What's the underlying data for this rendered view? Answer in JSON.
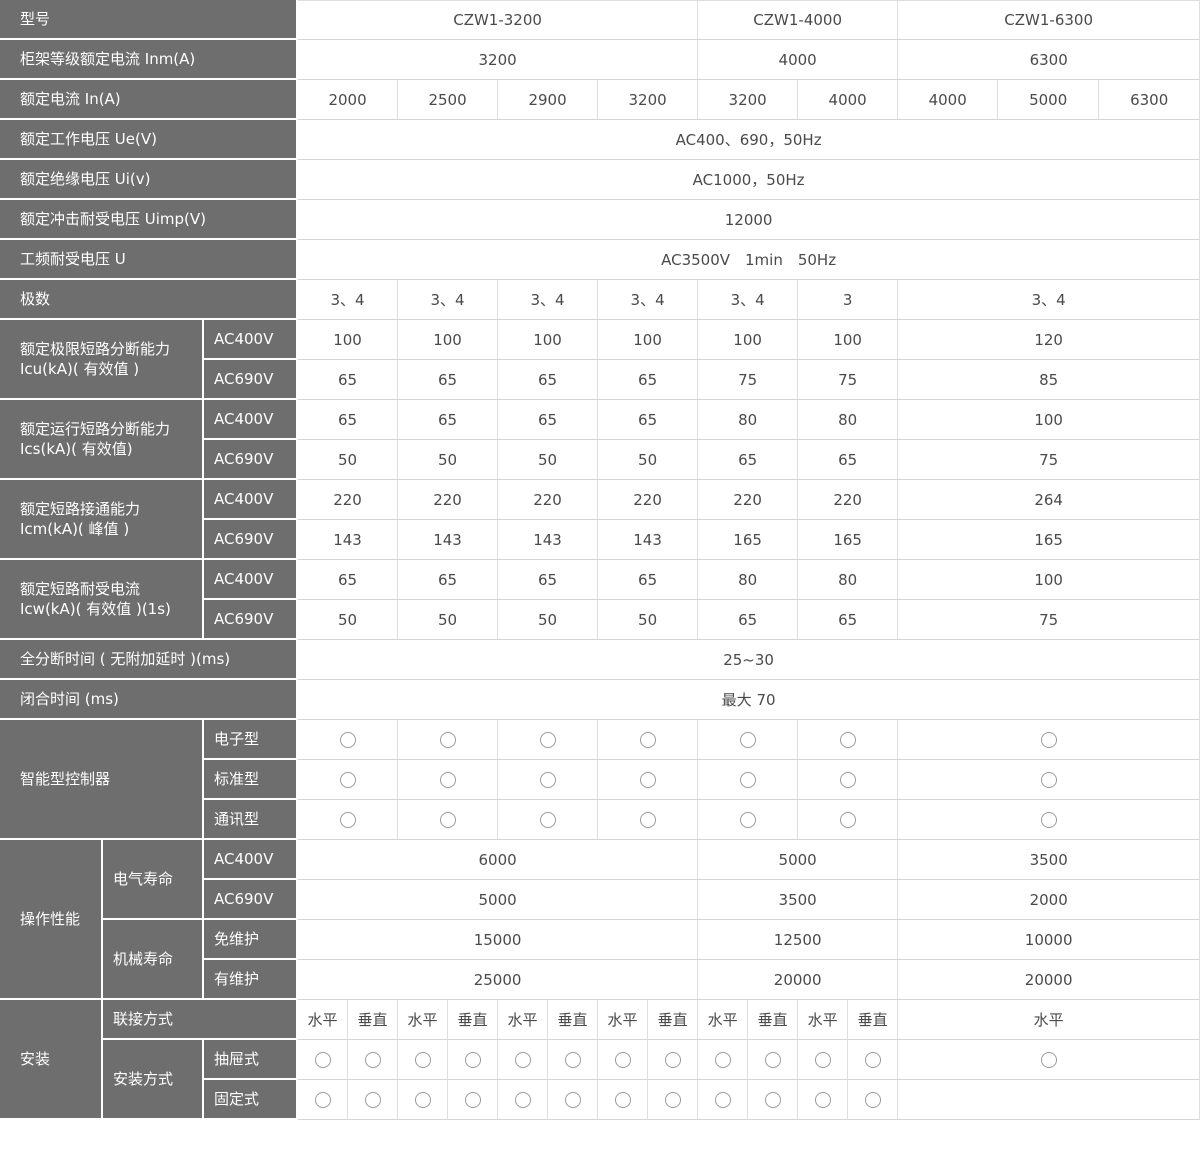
{
  "meta": {
    "document_title": "CZW1 系列万能式断路器主要技术参数表",
    "models": [
      "CZW1-3200",
      "CZW1-4000",
      "CZW1-6300"
    ]
  },
  "colors": {
    "header_bg": "#6e6e6e",
    "header_text": "#ffffff",
    "data_text": "#4a4a4a",
    "grid_line": "#d6d6d6",
    "header_gap_line": "#ffffff",
    "circle_stroke": "#9a9a9a"
  },
  "symbols": {
    "circle": "available-option-circle"
  },
  "table": {
    "rows": [
      {
        "cells": [
          {
            "k": "label",
            "t": "型号",
            "cs": 3
          },
          {
            "k": "data",
            "t": "CZW1-3200",
            "cs": 8
          },
          {
            "k": "data",
            "t": "CZW1-4000",
            "cs": 4
          },
          {
            "k": "data",
            "t": "CZW1-6300",
            "cs": 3
          }
        ]
      },
      {
        "cells": [
          {
            "k": "label",
            "t": "柜架等级额定电流 Inm(A)",
            "cs": 3
          },
          {
            "k": "data",
            "t": "3200",
            "cs": 8
          },
          {
            "k": "data",
            "t": "4000",
            "cs": 4
          },
          {
            "k": "data",
            "t": "6300",
            "cs": 3
          }
        ]
      },
      {
        "cells": [
          {
            "k": "label",
            "t": "额定电流 In(A)",
            "cs": 3
          },
          {
            "k": "data",
            "t": "2000",
            "cs": 2
          },
          {
            "k": "data",
            "t": "2500",
            "cs": 2
          },
          {
            "k": "data",
            "t": "2900",
            "cs": 2
          },
          {
            "k": "data",
            "t": "3200",
            "cs": 2
          },
          {
            "k": "data",
            "t": "3200",
            "cs": 2
          },
          {
            "k": "data",
            "t": "4000",
            "cs": 2
          },
          {
            "k": "data",
            "t": "4000"
          },
          {
            "k": "data",
            "t": "5000"
          },
          {
            "k": "data",
            "t": "6300"
          }
        ]
      },
      {
        "cells": [
          {
            "k": "label",
            "t": "额定工作电压 Ue(V)",
            "cs": 3
          },
          {
            "k": "data",
            "t": "AC400、690，50Hz",
            "cs": 15
          }
        ]
      },
      {
        "cells": [
          {
            "k": "label",
            "t": "额定绝缘电压 Ui(v)",
            "cs": 3
          },
          {
            "k": "data",
            "t": "AC1000，50Hz",
            "cs": 15
          }
        ]
      },
      {
        "cells": [
          {
            "k": "label",
            "t": "额定冲击耐受电压 Uimp(V)",
            "cs": 3
          },
          {
            "k": "data",
            "t": "12000",
            "cs": 15
          }
        ]
      },
      {
        "cells": [
          {
            "k": "label",
            "t": "工频耐受电压 U",
            "cs": 3
          },
          {
            "k": "data",
            "t": "AC3500V　1min　50Hz",
            "cs": 15
          }
        ]
      },
      {
        "cells": [
          {
            "k": "label",
            "t": "极数",
            "cs": 3
          },
          {
            "k": "data",
            "t": "3、4",
            "cs": 2
          },
          {
            "k": "data",
            "t": "3、4",
            "cs": 2
          },
          {
            "k": "data",
            "t": "3、4",
            "cs": 2
          },
          {
            "k": "data",
            "t": "3、4",
            "cs": 2
          },
          {
            "k": "data",
            "t": "3、4",
            "cs": 2
          },
          {
            "k": "data",
            "t": "3",
            "cs": 2
          },
          {
            "k": "data",
            "t": "3、4",
            "cs": 3
          }
        ]
      },
      {
        "cells": [
          {
            "k": "label",
            "t": "额定极限短路分断能力\nIcu(kA)( 有效值 )",
            "cs": 2,
            "rs": 2
          },
          {
            "k": "sub",
            "t": "AC400V"
          },
          {
            "k": "data",
            "t": "100",
            "cs": 2
          },
          {
            "k": "data",
            "t": "100",
            "cs": 2
          },
          {
            "k": "data",
            "t": "100",
            "cs": 2
          },
          {
            "k": "data",
            "t": "100",
            "cs": 2
          },
          {
            "k": "data",
            "t": "100",
            "cs": 2
          },
          {
            "k": "data",
            "t": "100",
            "cs": 2
          },
          {
            "k": "data",
            "t": "120",
            "cs": 3
          }
        ]
      },
      {
        "cells": [
          {
            "k": "sub",
            "t": "AC690V"
          },
          {
            "k": "data",
            "t": "65",
            "cs": 2
          },
          {
            "k": "data",
            "t": "65",
            "cs": 2
          },
          {
            "k": "data",
            "t": "65",
            "cs": 2
          },
          {
            "k": "data",
            "t": "65",
            "cs": 2
          },
          {
            "k": "data",
            "t": "75",
            "cs": 2
          },
          {
            "k": "data",
            "t": "75",
            "cs": 2
          },
          {
            "k": "data",
            "t": "85",
            "cs": 3
          }
        ]
      },
      {
        "cells": [
          {
            "k": "label",
            "t": "额定运行短路分断能力\nIcs(kA)( 有效值)",
            "cs": 2,
            "rs": 2
          },
          {
            "k": "sub",
            "t": "AC400V"
          },
          {
            "k": "data",
            "t": "65",
            "cs": 2
          },
          {
            "k": "data",
            "t": "65",
            "cs": 2
          },
          {
            "k": "data",
            "t": "65",
            "cs": 2
          },
          {
            "k": "data",
            "t": "65",
            "cs": 2
          },
          {
            "k": "data",
            "t": "80",
            "cs": 2
          },
          {
            "k": "data",
            "t": "80",
            "cs": 2
          },
          {
            "k": "data",
            "t": "100",
            "cs": 3
          }
        ]
      },
      {
        "cells": [
          {
            "k": "sub",
            "t": "AC690V"
          },
          {
            "k": "data",
            "t": "50",
            "cs": 2
          },
          {
            "k": "data",
            "t": "50",
            "cs": 2
          },
          {
            "k": "data",
            "t": "50",
            "cs": 2
          },
          {
            "k": "data",
            "t": "50",
            "cs": 2
          },
          {
            "k": "data",
            "t": "65",
            "cs": 2
          },
          {
            "k": "data",
            "t": "65",
            "cs": 2
          },
          {
            "k": "data",
            "t": "75",
            "cs": 3
          }
        ]
      },
      {
        "cells": [
          {
            "k": "label",
            "t": "额定短路接通能力\nIcm(kA)( 峰值 )",
            "cs": 2,
            "rs": 2
          },
          {
            "k": "sub",
            "t": "AC400V"
          },
          {
            "k": "data",
            "t": "220",
            "cs": 2
          },
          {
            "k": "data",
            "t": "220",
            "cs": 2
          },
          {
            "k": "data",
            "t": "220",
            "cs": 2
          },
          {
            "k": "data",
            "t": "220",
            "cs": 2
          },
          {
            "k": "data",
            "t": "220",
            "cs": 2
          },
          {
            "k": "data",
            "t": "220",
            "cs": 2
          },
          {
            "k": "data",
            "t": "264",
            "cs": 3
          }
        ]
      },
      {
        "cells": [
          {
            "k": "sub",
            "t": "AC690V"
          },
          {
            "k": "data",
            "t": "143",
            "cs": 2
          },
          {
            "k": "data",
            "t": "143",
            "cs": 2
          },
          {
            "k": "data",
            "t": "143",
            "cs": 2
          },
          {
            "k": "data",
            "t": "143",
            "cs": 2
          },
          {
            "k": "data",
            "t": "165",
            "cs": 2
          },
          {
            "k": "data",
            "t": "165",
            "cs": 2
          },
          {
            "k": "data",
            "t": "165",
            "cs": 3
          }
        ]
      },
      {
        "cells": [
          {
            "k": "label",
            "t": "额定短路耐受电流\nIcw(kA)( 有效值 )(1s)",
            "cs": 2,
            "rs": 2
          },
          {
            "k": "sub",
            "t": "AC400V"
          },
          {
            "k": "data",
            "t": "65",
            "cs": 2
          },
          {
            "k": "data",
            "t": "65",
            "cs": 2
          },
          {
            "k": "data",
            "t": "65",
            "cs": 2
          },
          {
            "k": "data",
            "t": "65",
            "cs": 2
          },
          {
            "k": "data",
            "t": "80",
            "cs": 2
          },
          {
            "k": "data",
            "t": "80",
            "cs": 2
          },
          {
            "k": "data",
            "t": "100",
            "cs": 3
          }
        ]
      },
      {
        "cells": [
          {
            "k": "sub",
            "t": "AC690V"
          },
          {
            "k": "data",
            "t": "50",
            "cs": 2
          },
          {
            "k": "data",
            "t": "50",
            "cs": 2
          },
          {
            "k": "data",
            "t": "50",
            "cs": 2
          },
          {
            "k": "data",
            "t": "50",
            "cs": 2
          },
          {
            "k": "data",
            "t": "65",
            "cs": 2
          },
          {
            "k": "data",
            "t": "65",
            "cs": 2
          },
          {
            "k": "data",
            "t": "75",
            "cs": 3
          }
        ]
      },
      {
        "cells": [
          {
            "k": "label",
            "t": "全分断时间 ( 无附加延时 )(ms)",
            "cs": 3
          },
          {
            "k": "data",
            "t": "25~30",
            "cs": 15
          }
        ]
      },
      {
        "cells": [
          {
            "k": "label",
            "t": "闭合时间 (ms)",
            "cs": 3
          },
          {
            "k": "data",
            "t": "最大 70",
            "cs": 15
          }
        ]
      },
      {
        "cells": [
          {
            "k": "label",
            "t": "智能型控制器",
            "cs": 2,
            "rs": 3
          },
          {
            "k": "sub",
            "t": "电子型"
          },
          {
            "k": "circle",
            "cs": 2
          },
          {
            "k": "circle",
            "cs": 2
          },
          {
            "k": "circle",
            "cs": 2
          },
          {
            "k": "circle",
            "cs": 2
          },
          {
            "k": "circle",
            "cs": 2
          },
          {
            "k": "circle",
            "cs": 2
          },
          {
            "k": "circle",
            "cs": 3
          }
        ]
      },
      {
        "cells": [
          {
            "k": "sub",
            "t": "标准型"
          },
          {
            "k": "circle",
            "cs": 2
          },
          {
            "k": "circle",
            "cs": 2
          },
          {
            "k": "circle",
            "cs": 2
          },
          {
            "k": "circle",
            "cs": 2
          },
          {
            "k": "circle",
            "cs": 2
          },
          {
            "k": "circle",
            "cs": 2
          },
          {
            "k": "circle",
            "cs": 3
          }
        ]
      },
      {
        "cells": [
          {
            "k": "sub",
            "t": "通讯型"
          },
          {
            "k": "circle",
            "cs": 2
          },
          {
            "k": "circle",
            "cs": 2
          },
          {
            "k": "circle",
            "cs": 2
          },
          {
            "k": "circle",
            "cs": 2
          },
          {
            "k": "circle",
            "cs": 2
          },
          {
            "k": "circle",
            "cs": 2
          },
          {
            "k": "circle",
            "cs": 3
          }
        ]
      },
      {
        "cells": [
          {
            "k": "label",
            "t": "操作性能",
            "rs": 4
          },
          {
            "k": "mid",
            "t": "电气寿命",
            "rs": 2
          },
          {
            "k": "sub",
            "t": "AC400V"
          },
          {
            "k": "data",
            "t": "6000",
            "cs": 8
          },
          {
            "k": "data",
            "t": "5000",
            "cs": 4
          },
          {
            "k": "data",
            "t": "3500",
            "cs": 3
          }
        ]
      },
      {
        "cells": [
          {
            "k": "sub",
            "t": "AC690V"
          },
          {
            "k": "data",
            "t": "5000",
            "cs": 8
          },
          {
            "k": "data",
            "t": "3500",
            "cs": 4
          },
          {
            "k": "data",
            "t": "2000",
            "cs": 3
          }
        ]
      },
      {
        "cells": [
          {
            "k": "mid",
            "t": "机械寿命",
            "rs": 2
          },
          {
            "k": "sub",
            "t": "免维护"
          },
          {
            "k": "data",
            "t": "15000",
            "cs": 8
          },
          {
            "k": "data",
            "t": "12500",
            "cs": 4
          },
          {
            "k": "data",
            "t": "10000",
            "cs": 3
          }
        ]
      },
      {
        "cells": [
          {
            "k": "sub",
            "t": "有维护"
          },
          {
            "k": "data",
            "t": "25000",
            "cs": 8
          },
          {
            "k": "data",
            "t": "20000",
            "cs": 4
          },
          {
            "k": "data",
            "t": "20000",
            "cs": 3
          }
        ]
      },
      {
        "cells": [
          {
            "k": "label",
            "t": "安装",
            "rs": 3
          },
          {
            "k": "mid",
            "t": "联接方式",
            "cs": 2
          },
          {
            "k": "data",
            "t": "水平"
          },
          {
            "k": "data",
            "t": "垂直"
          },
          {
            "k": "data",
            "t": "水平"
          },
          {
            "k": "data",
            "t": "垂直"
          },
          {
            "k": "data",
            "t": "水平"
          },
          {
            "k": "data",
            "t": "垂直"
          },
          {
            "k": "data",
            "t": "水平"
          },
          {
            "k": "data",
            "t": "垂直"
          },
          {
            "k": "data",
            "t": "水平"
          },
          {
            "k": "data",
            "t": "垂直"
          },
          {
            "k": "data",
            "t": "水平"
          },
          {
            "k": "data",
            "t": "垂直"
          },
          {
            "k": "data",
            "t": "水平",
            "cs": 3
          }
        ]
      },
      {
        "cells": [
          {
            "k": "mid",
            "t": "安装方式",
            "rs": 2
          },
          {
            "k": "sub",
            "t": "抽屉式"
          },
          {
            "k": "circle"
          },
          {
            "k": "circle"
          },
          {
            "k": "circle"
          },
          {
            "k": "circle"
          },
          {
            "k": "circle"
          },
          {
            "k": "circle"
          },
          {
            "k": "circle"
          },
          {
            "k": "circle"
          },
          {
            "k": "circle"
          },
          {
            "k": "circle"
          },
          {
            "k": "circle"
          },
          {
            "k": "circle"
          },
          {
            "k": "circle",
            "cs": 3
          }
        ]
      },
      {
        "cells": [
          {
            "k": "sub",
            "t": "固定式"
          },
          {
            "k": "circle"
          },
          {
            "k": "circle"
          },
          {
            "k": "circle"
          },
          {
            "k": "circle"
          },
          {
            "k": "circle"
          },
          {
            "k": "circle"
          },
          {
            "k": "circle"
          },
          {
            "k": "circle"
          },
          {
            "k": "circle"
          },
          {
            "k": "circle"
          },
          {
            "k": "circle"
          },
          {
            "k": "circle"
          },
          {
            "k": "blank",
            "cs": 3
          }
        ]
      }
    ]
  }
}
